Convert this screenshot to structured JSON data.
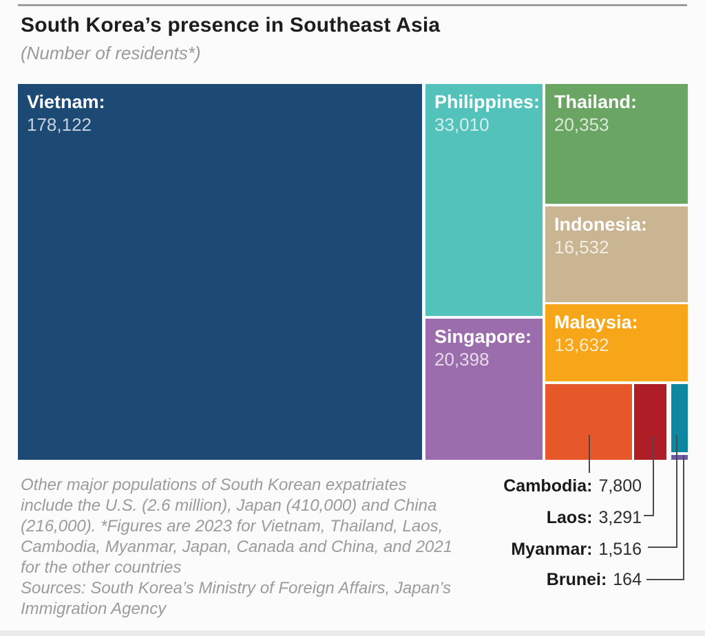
{
  "header": {
    "title": "South Korea’s presence in Southeast Asia",
    "subtitle": "(Number of residents*)"
  },
  "chart_data": {
    "type": "treemap",
    "title": "South Korea’s presence in Southeast Asia",
    "unit": "Number of residents",
    "items": [
      {
        "name": "Vietnam",
        "value": 178122,
        "label": "Vietnam:",
        "value_label": "178,122",
        "color": "#1d4a75"
      },
      {
        "name": "Philippines",
        "value": 33010,
        "label": "Philippines:",
        "value_label": "33,010",
        "color": "#52c2bb"
      },
      {
        "name": "Singapore",
        "value": 20398,
        "label": "Singapore:",
        "value_label": "20,398",
        "color": "#9c6dac"
      },
      {
        "name": "Thailand",
        "value": 20353,
        "label": "Thailand:",
        "value_label": "20,353",
        "color": "#6aa564"
      },
      {
        "name": "Indonesia",
        "value": 16532,
        "label": "Indonesia:",
        "value_label": "16,532",
        "color": "#c9b592"
      },
      {
        "name": "Malaysia",
        "value": 13632,
        "label": "Malaysia:",
        "value_label": "13,632",
        "color": "#f6a618"
      },
      {
        "name": "Cambodia",
        "value": 7800,
        "label": "Cambodia:",
        "value_label": "7,800",
        "color": "#e65829"
      },
      {
        "name": "Laos",
        "value": 3291,
        "label": "Laos:",
        "value_label": "3,291",
        "color": "#af1d26"
      },
      {
        "name": "Myanmar",
        "value": 1516,
        "label": "Myanmar:",
        "value_label": "1,516",
        "color": "#0e87a0"
      },
      {
        "name": "Brunei",
        "value": 164,
        "label": "Brunei:",
        "value_label": "164",
        "color": "#6f58a8"
      }
    ],
    "legend": "none",
    "layout": "treemap: Vietnam left column; Philippines over Singapore middle column; Thailand, Indonesia, Malaysia and small-countries row in right column"
  },
  "footer": {
    "note": "Other major populations of South Korean expatriates include the U.S. (2.6 million), Japan (410,000) and China (216,000). *Figures are 2023 for Vietnam, Thailand, Laos, Cambodia, Myanmar, Japan, Canada and China, and 2021 for the other countries",
    "sources": "Sources: South Korea’s Ministry of Foreign Affairs, Japan’s Immigration Agency"
  }
}
